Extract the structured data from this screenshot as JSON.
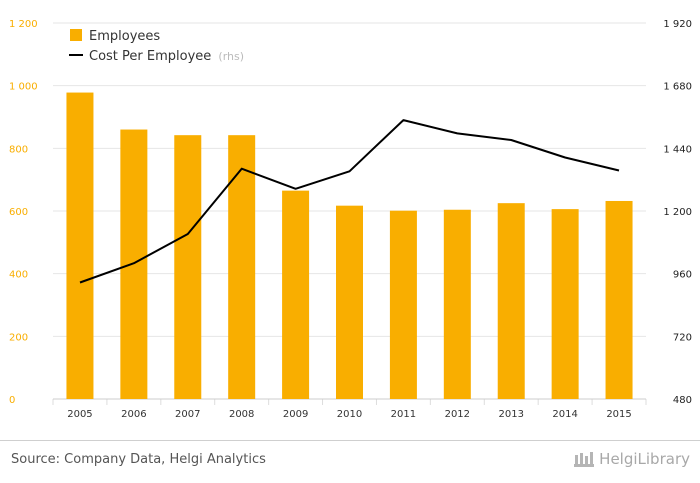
{
  "chart_data": {
    "type": "bar+line",
    "categories": [
      "2005",
      "2006",
      "2007",
      "2008",
      "2009",
      "2010",
      "2011",
      "2012",
      "2013",
      "2014",
      "2015"
    ],
    "series": [
      {
        "name": "Employees",
        "type": "bar",
        "axis": "left",
        "values": [
          978,
          860,
          842,
          842,
          665,
          617,
          601,
          604,
          625,
          606,
          632
        ]
      },
      {
        "name": "Cost Per Employee",
        "name_suffix": "(rhs)",
        "type": "line",
        "axis": "right",
        "values": [
          926,
          1000,
          1112,
          1362,
          1285,
          1352,
          1548,
          1497,
          1472,
          1405,
          1355
        ]
      }
    ],
    "left_axis": {
      "ylim": [
        0,
        1200
      ],
      "ticks": [
        0,
        200,
        400,
        600,
        800,
        1000,
        1200
      ],
      "tick_labels": [
        "0",
        "200",
        "400",
        "600",
        "800",
        "1 000",
        "1 200"
      ]
    },
    "right_axis": {
      "ylim": [
        480,
        1920
      ],
      "ticks": [
        480,
        720,
        960,
        1200,
        1440,
        1680,
        1920
      ],
      "tick_labels": [
        "480",
        "720",
        "960",
        "1 200",
        "1 440",
        "1 680",
        "1 920"
      ]
    },
    "grid": true,
    "legend_position": "top-left"
  },
  "colors": {
    "bar": "#F9AE00",
    "line": "#000000",
    "left_ticks": "#F9AE00",
    "grid": "#e6e6e6"
  },
  "footer": {
    "source": "Source: Company Data, Helgi Analytics",
    "brand": "HelgiLibrary"
  }
}
